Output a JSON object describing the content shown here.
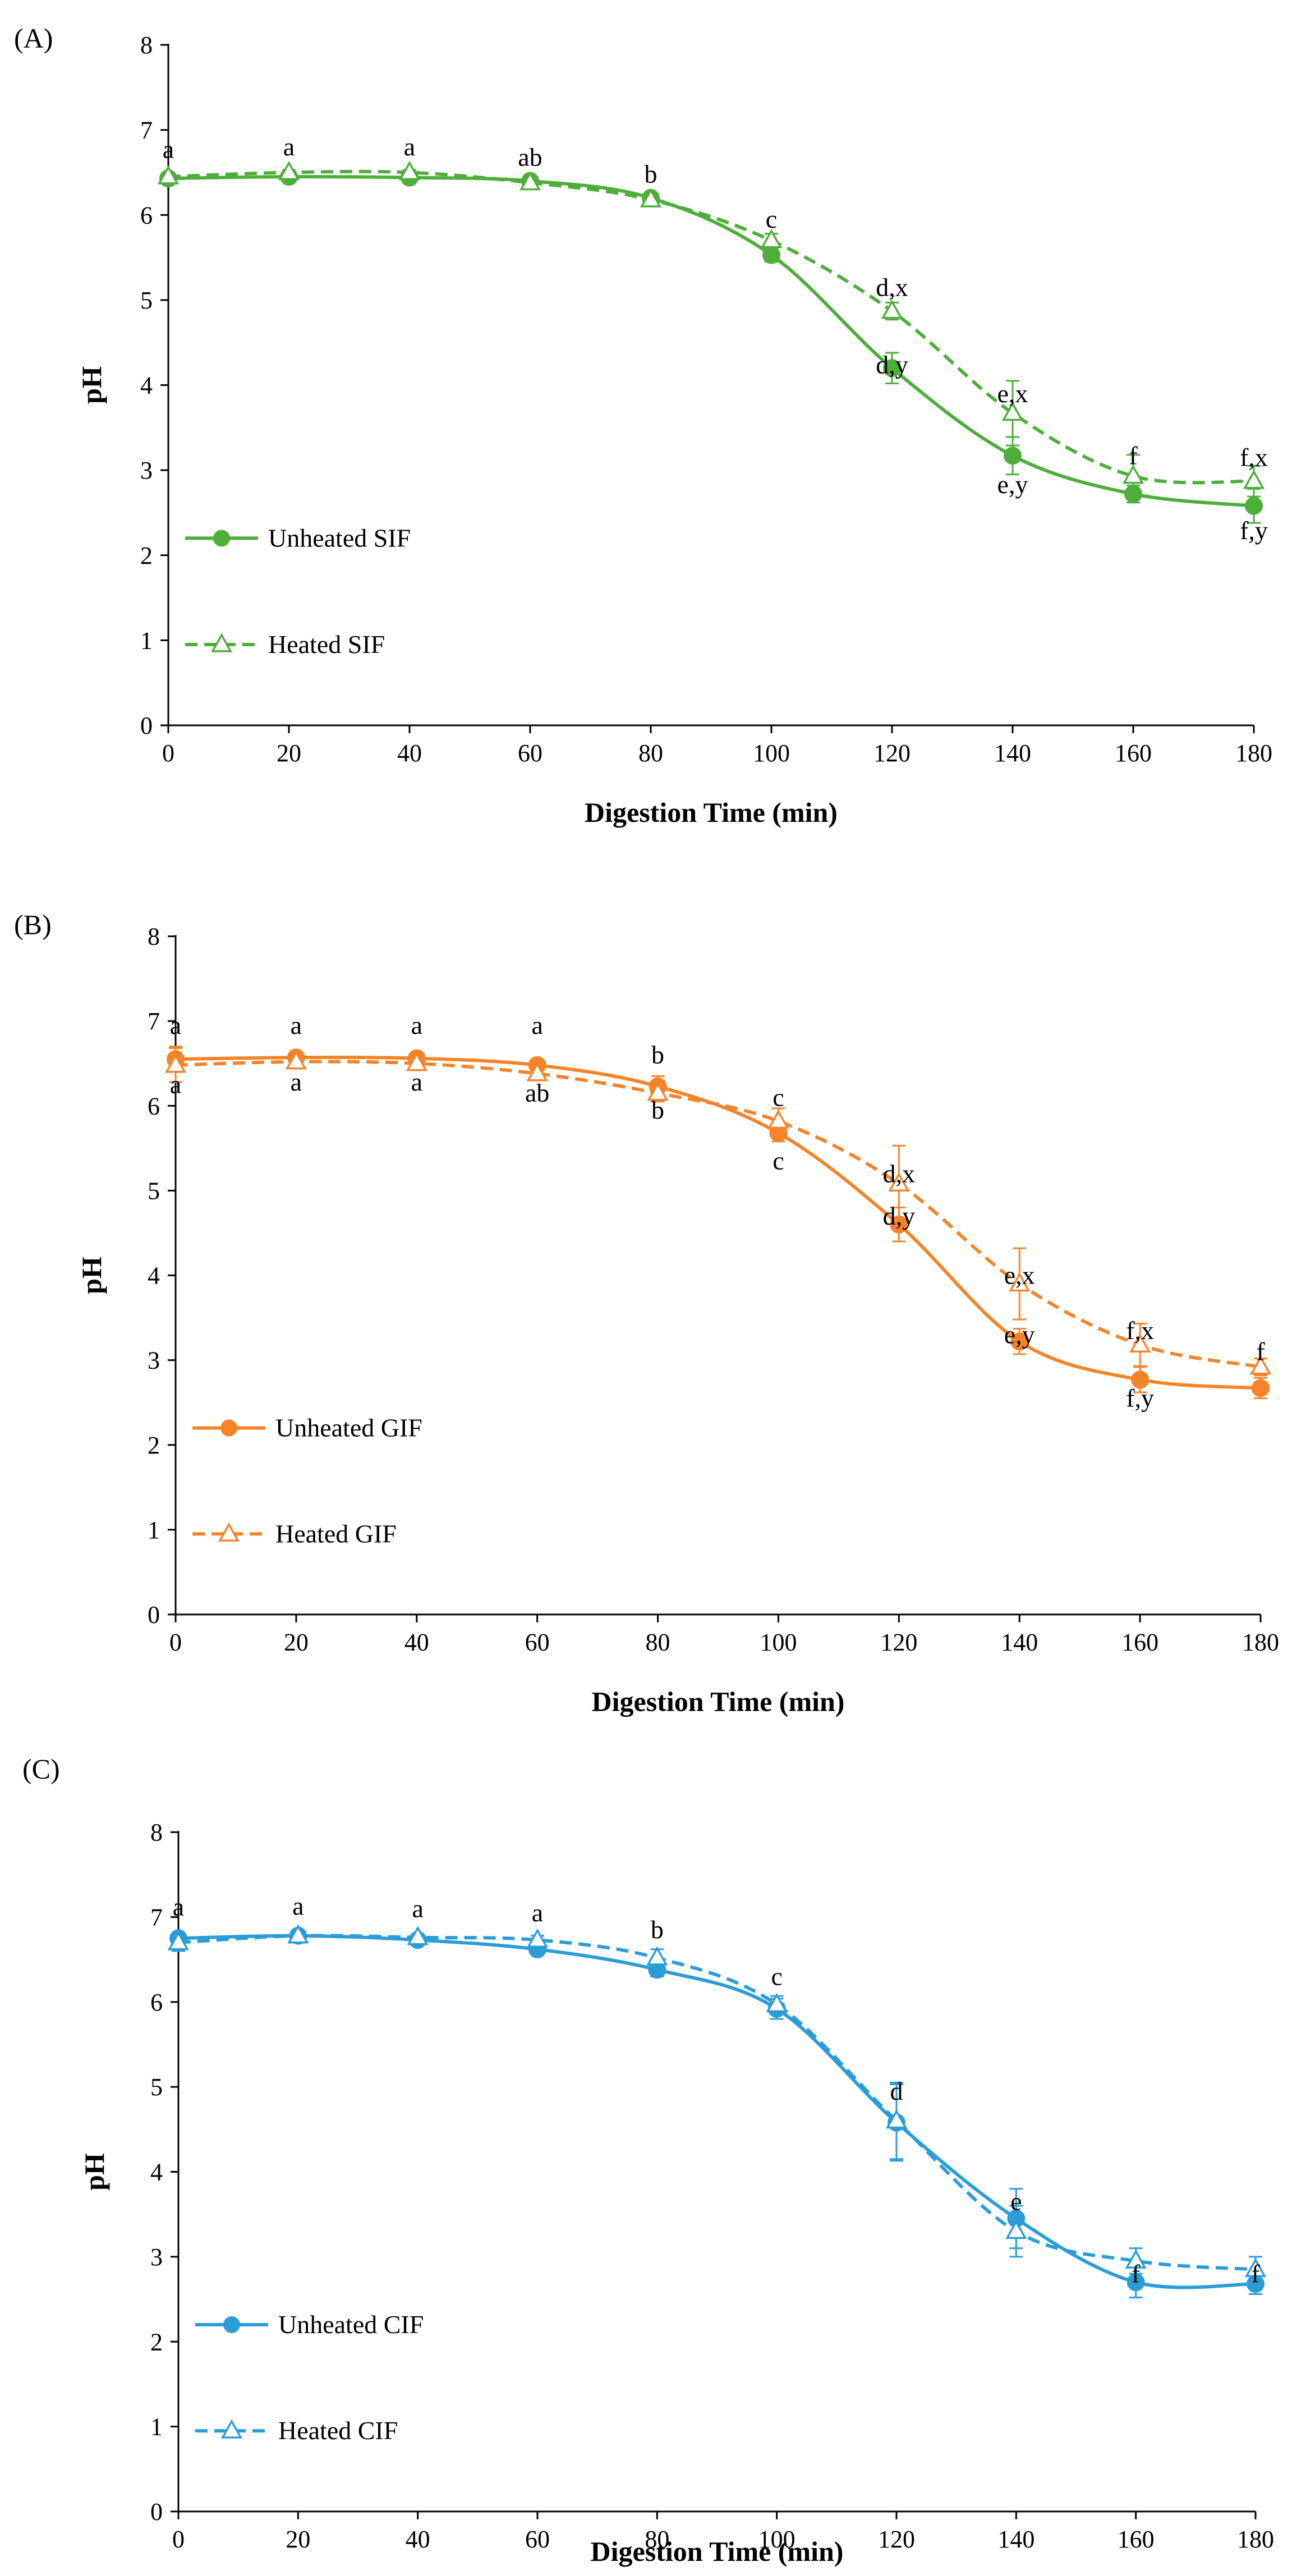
{
  "chart_data": [
    {
      "panel": "(A)",
      "type": "line",
      "xlabel": "Digestion Time (min)",
      "ylabel": "pH",
      "xlim": [
        0,
        180
      ],
      "ylim": [
        0,
        8
      ],
      "x_ticks": [
        0,
        20,
        40,
        60,
        80,
        100,
        120,
        140,
        160,
        180
      ],
      "y_ticks": [
        0,
        1,
        2,
        3,
        4,
        5,
        6,
        7,
        8
      ],
      "x": [
        0,
        20,
        40,
        60,
        80,
        100,
        120,
        140,
        160,
        180
      ],
      "legend_position": "bottom-left",
      "color": "#4DAE3A",
      "series": [
        {
          "name": "Unheated SIF",
          "style": "solid",
          "marker": "filled-circle",
          "values": [
            6.43,
            6.45,
            6.44,
            6.4,
            6.2,
            5.53,
            4.2,
            3.17,
            2.72,
            2.58
          ],
          "errors": [
            0.03,
            0.03,
            0.03,
            0.03,
            0.05,
            0.08,
            0.18,
            0.22,
            0.1,
            0.2
          ]
        },
        {
          "name": "Heated SIF",
          "style": "dashed",
          "marker": "open-triangle",
          "values": [
            6.45,
            6.5,
            6.5,
            6.38,
            6.18,
            5.7,
            4.87,
            3.67,
            2.93,
            2.87
          ],
          "errors": [
            0.03,
            0.03,
            0.03,
            0.03,
            0.05,
            0.08,
            0.1,
            0.38,
            0.25,
            0.18
          ]
        }
      ],
      "annotations": [
        {
          "text": "a",
          "x": 0,
          "y": 6.67
        },
        {
          "text": "a",
          "x": 20,
          "y": 6.7
        },
        {
          "text": "a",
          "x": 40,
          "y": 6.7
        },
        {
          "text": "ab",
          "x": 60,
          "y": 6.58
        },
        {
          "text": "b",
          "x": 80,
          "y": 6.38
        },
        {
          "text": "c",
          "x": 100,
          "y": 5.85
        },
        {
          "text": "d,x",
          "x": 120,
          "y": 5.05
        },
        {
          "text": "d,y",
          "x": 120,
          "y": 4.14
        },
        {
          "text": "e,x",
          "x": 140,
          "y": 3.8
        },
        {
          "text": "e,y",
          "x": 140,
          "y": 2.73
        },
        {
          "text": "f",
          "x": 160,
          "y": 3.07
        },
        {
          "text": "f,x",
          "x": 180,
          "y": 3.05
        },
        {
          "text": "f,y",
          "x": 180,
          "y": 2.19
        }
      ]
    },
    {
      "panel": "(B)",
      "type": "line",
      "xlabel": "Digestion Time (min)",
      "ylabel": "pH",
      "xlim": [
        0,
        180
      ],
      "ylim": [
        0,
        8
      ],
      "x_ticks": [
        0,
        20,
        40,
        60,
        80,
        100,
        120,
        140,
        160,
        180
      ],
      "y_ticks": [
        0,
        1,
        2,
        3,
        4,
        5,
        6,
        7,
        8
      ],
      "x": [
        0,
        20,
        40,
        60,
        80,
        100,
        120,
        140,
        160,
        180
      ],
      "legend_position": "bottom-left",
      "color": "#F58428",
      "series": [
        {
          "name": "Unheated GIF",
          "style": "solid",
          "marker": "filled-circle",
          "values": [
            6.55,
            6.57,
            6.56,
            6.48,
            6.23,
            5.68,
            4.6,
            3.22,
            2.77,
            2.67
          ],
          "errors": [
            0.15,
            0.05,
            0.05,
            0.05,
            0.12,
            0.1,
            0.2,
            0.15,
            0.15,
            0.12
          ]
        },
        {
          "name": "Heated GIF",
          "style": "dashed",
          "marker": "open-triangle",
          "values": [
            6.48,
            6.52,
            6.5,
            6.38,
            6.15,
            5.82,
            5.08,
            3.9,
            3.18,
            2.92
          ],
          "errors": [
            0.2,
            0.05,
            0.05,
            0.05,
            0.1,
            0.15,
            0.45,
            0.42,
            0.25,
            0.1
          ]
        }
      ],
      "annotations": [
        {
          "text": "a",
          "x": 0,
          "y": 6.85
        },
        {
          "text": "a",
          "x": 0,
          "y": 6.15
        },
        {
          "text": "a",
          "x": 20,
          "y": 6.85
        },
        {
          "text": "a",
          "x": 20,
          "y": 6.18
        },
        {
          "text": "a",
          "x": 40,
          "y": 6.85
        },
        {
          "text": "a",
          "x": 40,
          "y": 6.18
        },
        {
          "text": "a",
          "x": 60,
          "y": 6.85
        },
        {
          "text": "ab",
          "x": 60,
          "y": 6.05
        },
        {
          "text": "b",
          "x": 80,
          "y": 6.5
        },
        {
          "text": "b",
          "x": 80,
          "y": 5.85
        },
        {
          "text": "c",
          "x": 100,
          "y": 6.0
        },
        {
          "text": "c",
          "x": 100,
          "y": 5.25
        },
        {
          "text": "d,x",
          "x": 120,
          "y": 5.1
        },
        {
          "text": "d,y",
          "x": 120,
          "y": 4.6
        },
        {
          "text": "e,x",
          "x": 140,
          "y": 3.9
        },
        {
          "text": "e,y",
          "x": 140,
          "y": 3.2
        },
        {
          "text": "f,x",
          "x": 160,
          "y": 3.25
        },
        {
          "text": "f,y",
          "x": 160,
          "y": 2.45
        },
        {
          "text": "f",
          "x": 180,
          "y": 3.0
        }
      ]
    },
    {
      "panel": "(C)",
      "type": "line",
      "xlabel": "Digestion Time (min)",
      "ylabel": "pH",
      "xlim": [
        0,
        180
      ],
      "ylim": [
        0,
        8
      ],
      "x_ticks": [
        0,
        20,
        40,
        60,
        80,
        100,
        120,
        140,
        160,
        180
      ],
      "y_ticks": [
        0,
        1,
        2,
        3,
        4,
        5,
        6,
        7,
        8
      ],
      "x": [
        0,
        20,
        40,
        60,
        80,
        100,
        120,
        140,
        160,
        180
      ],
      "legend_position": "bottom-left",
      "color": "#2A9DD8",
      "series": [
        {
          "name": "Unheated CIF",
          "style": "solid",
          "marker": "filled-circle",
          "values": [
            6.75,
            6.78,
            6.73,
            6.62,
            6.38,
            5.92,
            4.58,
            3.45,
            2.7,
            2.68
          ],
          "errors": [
            0.05,
            0.03,
            0.03,
            0.05,
            0.08,
            0.12,
            0.45,
            0.35,
            0.18,
            0.12
          ]
        },
        {
          "name": "Heated CIF",
          "style": "dashed",
          "marker": "open-triangle",
          "values": [
            6.7,
            6.78,
            6.76,
            6.73,
            6.52,
            5.97,
            4.6,
            3.3,
            2.95,
            2.85
          ],
          "errors": [
            0.1,
            0.03,
            0.03,
            0.05,
            0.1,
            0.1,
            0.45,
            0.3,
            0.15,
            0.15
          ]
        }
      ],
      "annotations": [
        {
          "text": "a",
          "x": 0,
          "y": 7.02
        },
        {
          "text": "a",
          "x": 20,
          "y": 7.03
        },
        {
          "text": "a",
          "x": 40,
          "y": 7.0
        },
        {
          "text": "a",
          "x": 60,
          "y": 6.95
        },
        {
          "text": "b",
          "x": 80,
          "y": 6.75
        },
        {
          "text": "c",
          "x": 100,
          "y": 6.2
        },
        {
          "text": "d",
          "x": 120,
          "y": 4.85
        },
        {
          "text": "e",
          "x": 140,
          "y": 3.55
        },
        {
          "text": "f",
          "x": 160,
          "y": 2.7
        },
        {
          "text": "f",
          "x": 180,
          "y": 2.7
        }
      ]
    }
  ]
}
